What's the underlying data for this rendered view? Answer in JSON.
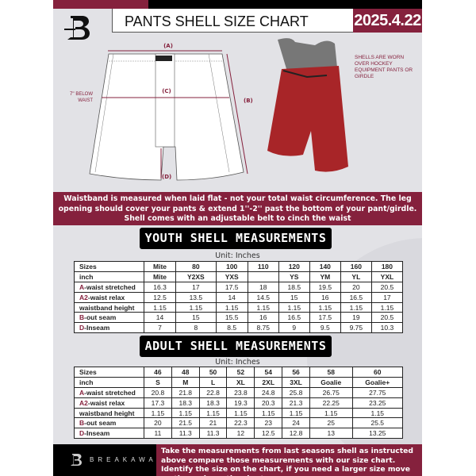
{
  "header": {
    "title": "PANTS SHELL SIZE CHART",
    "date": "2025.4.22"
  },
  "diagram": {
    "labels": {
      "a": "(A)",
      "b": "(B)",
      "c": "(C)",
      "d": "(D)"
    },
    "below_waist": "7'' BELOW WAIST",
    "note": "SHELLS ARE WORN OVER HOCKEY EQUIPMENT PANTS OR GIRDLE"
  },
  "instructions": "Waistband is measured when laid flat - not your total waist circumference. The leg opening should cover your pants & extend 1''-2'' past the bottom of your pant/girdle. Shell comes with an adjustable belt to cinch the waist",
  "youth": {
    "title": "YOUTH SHELL MEASUREMENTS",
    "unit": "Unit: Inches",
    "rows": [
      {
        "label": "Sizes",
        "values": [
          "Mite",
          "80",
          "100",
          "110",
          "120",
          "140",
          "160",
          "180"
        ]
      },
      {
        "label": "inch",
        "values": [
          "Mite",
          "Y2XS",
          "YXS",
          "",
          "YS",
          "YM",
          "YL",
          "YXL"
        ]
      },
      {
        "prefix": "A",
        "label": "-waist stretched",
        "values": [
          "16.3",
          "17",
          "17.5",
          "18",
          "18.5",
          "19.5",
          "20",
          "20.5"
        ]
      },
      {
        "prefix": "A2",
        "label": "-waist relax",
        "values": [
          "12.5",
          "13.5",
          "14",
          "14.5",
          "15",
          "16",
          "16.5",
          "17"
        ]
      },
      {
        "label": "waistband height",
        "values": [
          "1.15",
          "1.15",
          "1.15",
          "1.15",
          "1.15",
          "1.15",
          "1.15",
          "1.15"
        ]
      },
      {
        "prefix": "B",
        "label": "-out seam",
        "values": [
          "14",
          "15",
          "15.5",
          "16",
          "16.5",
          "17.5",
          "19",
          "20.5"
        ]
      },
      {
        "prefix": "D",
        "label": "-Inseam",
        "values": [
          "7",
          "8",
          "8.5",
          "8.75",
          "9",
          "9.5",
          "9.75",
          "10.3"
        ]
      }
    ]
  },
  "adult": {
    "title": "ADULT SHELL MEASUREMENTS",
    "unit": "Unit: Inches",
    "rows": [
      {
        "label": "Sizes",
        "values": [
          "46",
          "48",
          "50",
          "52",
          "54",
          "56",
          "58",
          "60"
        ]
      },
      {
        "label": "inch",
        "values": [
          "S",
          "M",
          "L",
          "XL",
          "2XL",
          "3XL",
          "Goalie",
          "Goalie+"
        ]
      },
      {
        "prefix": "A",
        "label": "-waist stretched",
        "values": [
          "20.8",
          "21.8",
          "22.8",
          "23.8",
          "24.8",
          "25.8",
          "26.75",
          "27.75"
        ]
      },
      {
        "prefix": "A2",
        "label": "-waist relax",
        "values": [
          "17.3",
          "18.3",
          "18.3",
          "19.3",
          "20.3",
          "21.3",
          "22.25",
          "23.25"
        ]
      },
      {
        "label": "waistband height",
        "values": [
          "1.15",
          "1.15",
          "1.15",
          "1.15",
          "1.15",
          "1.15",
          "1.15",
          "1.15"
        ]
      },
      {
        "prefix": "B",
        "label": "-out seam",
        "values": [
          "20",
          "21.5",
          "21",
          "22.3",
          "23",
          "24",
          "25",
          "25.5"
        ]
      },
      {
        "prefix": "D",
        "label": "-Inseam",
        "values": [
          "11",
          "11.3",
          "11.3",
          "12",
          "12.5",
          "12.8",
          "13",
          "13.25"
        ]
      }
    ]
  },
  "footer": {
    "brand": "BREAKAWAY",
    "text": "Take the measurements from last seasons shell as instructed above compare those measurements  with our size chart. Identify the size on the chart, if you need a larger size move up the scale on the chart"
  },
  "colors": {
    "accent": "#85213d",
    "dark": "#000000",
    "background": "#e2e2e6"
  }
}
